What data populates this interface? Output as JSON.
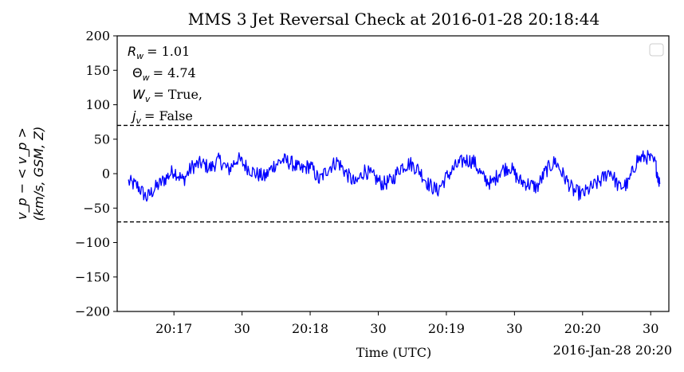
{
  "chart_data": {
    "type": "line",
    "title": "MMS 3 Jet Reversal Check at 2016-01-28 20:18:44",
    "xlabel": "Time (UTC)",
    "x_offset_label": "2016-Jan-28 20:20",
    "ylabel_line1": "v_p − < v_p >",
    "ylabel_line2": "(km/s, GSM, Z)",
    "ylim": [
      -200,
      200
    ],
    "yticks": [
      -200,
      -150,
      -100,
      -50,
      0,
      50,
      100,
      150,
      200
    ],
    "ytick_labels": [
      "−200",
      "−150",
      "−100",
      "−50",
      "0",
      "50",
      "100",
      "150",
      "200"
    ],
    "xlim": [
      "20:16:35",
      "20:20:38"
    ],
    "xticks": [
      "20:17:00",
      "20:17:30",
      "20:18:00",
      "20:18:30",
      "20:19:00",
      "20:19:30",
      "20:20:00",
      "20:20:30"
    ],
    "xtick_labels": [
      "20:17",
      "30",
      "20:18",
      "30",
      "20:19",
      "30",
      "20:20",
      "30"
    ],
    "threshold_lines": [
      70,
      -70
    ],
    "legend": "upper right",
    "annotations": {
      "r_w_label": "R",
      "r_w_sub": "w",
      "r_w_value": "= 1.01",
      "theta_w_label": "Θ",
      "theta_w_sub": "w",
      "theta_w_value": "= 4.74",
      "w_v_label": "W",
      "w_v_sub": "v",
      "w_v_value": "= True,",
      "j_v_label": "j",
      "j_v_sub": "v",
      "j_v_value": "= False"
    },
    "series": [
      {
        "color": "#0000ff",
        "x": [
          "20:16:40",
          "20:16:44",
          "20:16:48",
          "20:16:52",
          "20:16:56",
          "20:17:00",
          "20:17:04",
          "20:17:08",
          "20:17:12",
          "20:17:16",
          "20:17:20",
          "20:17:24",
          "20:17:28",
          "20:17:32",
          "20:17:36",
          "20:17:40",
          "20:17:44",
          "20:17:48",
          "20:17:52",
          "20:17:56",
          "20:18:00",
          "20:18:04",
          "20:18:08",
          "20:18:12",
          "20:18:16",
          "20:18:20",
          "20:18:24",
          "20:18:28",
          "20:18:32",
          "20:18:36",
          "20:18:40",
          "20:18:44",
          "20:18:48",
          "20:18:52",
          "20:18:56",
          "20:19:00",
          "20:19:04",
          "20:19:08",
          "20:19:12",
          "20:19:16",
          "20:19:20",
          "20:19:24",
          "20:19:28",
          "20:19:32",
          "20:19:36",
          "20:19:40",
          "20:19:44",
          "20:19:48",
          "20:19:52",
          "20:19:56",
          "20:20:00",
          "20:20:04",
          "20:20:08",
          "20:20:12",
          "20:20:16",
          "20:20:20",
          "20:20:24",
          "20:20:28",
          "20:20:32",
          "20:20:34"
        ],
        "y": [
          -12,
          -18,
          -35,
          -20,
          -8,
          5,
          -10,
          10,
          15,
          8,
          20,
          5,
          22,
          10,
          0,
          -5,
          12,
          20,
          15,
          5,
          12,
          -10,
          8,
          18,
          0,
          -15,
          5,
          -5,
          -15,
          -10,
          10,
          15,
          5,
          -15,
          -25,
          -5,
          10,
          20,
          18,
          -5,
          -15,
          5,
          10,
          -10,
          -15,
          -20,
          5,
          18,
          -5,
          -25,
          -30,
          -20,
          -10,
          5,
          -20,
          -15,
          20,
          25,
          15,
          -15
        ]
      }
    ]
  }
}
